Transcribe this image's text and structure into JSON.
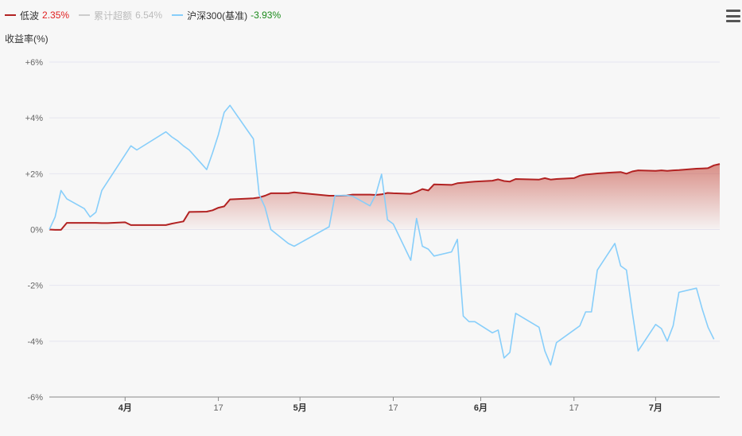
{
  "legend": [
    {
      "name": "低波",
      "value": "2.35%",
      "color": "#b22222",
      "value_color": "#e02020",
      "disabled": false
    },
    {
      "name": "累计超额",
      "value": "6.54%",
      "color": "#cccccc",
      "value_color": "#bbbbbb",
      "disabled": true
    },
    {
      "name": "沪深300(基准)",
      "value": "-3.93%",
      "color": "#87cefa",
      "value_color": "#1a8a1a",
      "disabled": false
    }
  ],
  "menu_icon": "hamburger-menu-icon",
  "chart_data": {
    "type": "line",
    "ylabel": "收益率(%)",
    "ylim": [
      -6,
      6
    ],
    "yticks": [
      6,
      4,
      2,
      0,
      -2,
      -4,
      -6
    ],
    "ytick_labels": [
      "+6%",
      "+4%",
      "+2%",
      "0%",
      "-2%",
      "-4%",
      "-6%"
    ],
    "grid": true,
    "x_range": [
      "2024-03-19",
      "2024-07-12"
    ],
    "xticks": [
      {
        "date": "2024-04-01",
        "label": "4月",
        "bold": true
      },
      {
        "date": "2024-04-17",
        "label": "17",
        "bold": false
      },
      {
        "date": "2024-05-01",
        "label": "5月",
        "bold": true
      },
      {
        "date": "2024-05-17",
        "label": "17",
        "bold": false
      },
      {
        "date": "2024-06-01",
        "label": "6月",
        "bold": true
      },
      {
        "date": "2024-06-17",
        "label": "17",
        "bold": false
      },
      {
        "date": "2024-07-01",
        "label": "7月",
        "bold": true
      }
    ],
    "series": [
      {
        "name": "低波",
        "color": "#b22222",
        "area": true,
        "points": [
          [
            "2024-03-19",
            0
          ],
          [
            "2024-03-20",
            -0.01
          ],
          [
            "2024-03-21",
            -0.01
          ],
          [
            "2024-03-22",
            0.24
          ],
          [
            "2024-03-25",
            0.24
          ],
          [
            "2024-03-26",
            0.24
          ],
          [
            "2024-03-27",
            0.24
          ],
          [
            "2024-03-28",
            0.23
          ],
          [
            "2024-03-29",
            0.23
          ],
          [
            "2024-04-01",
            0.26
          ],
          [
            "2024-04-02",
            0.16
          ],
          [
            "2024-04-03",
            0.16
          ],
          [
            "2024-04-08",
            0.16
          ],
          [
            "2024-04-09",
            0.21
          ],
          [
            "2024-04-10",
            0.25
          ],
          [
            "2024-04-11",
            0.29
          ],
          [
            "2024-04-12",
            0.63
          ],
          [
            "2024-04-15",
            0.64
          ],
          [
            "2024-04-16",
            0.69
          ],
          [
            "2024-04-17",
            0.78
          ],
          [
            "2024-04-18",
            0.83
          ],
          [
            "2024-04-19",
            1.08
          ],
          [
            "2024-04-22",
            1.11
          ],
          [
            "2024-04-23",
            1.12
          ],
          [
            "2024-04-24",
            1.15
          ],
          [
            "2024-04-25",
            1.21
          ],
          [
            "2024-04-26",
            1.3
          ],
          [
            "2024-04-29",
            1.3
          ],
          [
            "2024-04-30",
            1.33
          ],
          [
            "2024-05-06",
            1.21
          ],
          [
            "2024-05-07",
            1.21
          ],
          [
            "2024-05-08",
            1.21
          ],
          [
            "2024-05-09",
            1.22
          ],
          [
            "2024-05-10",
            1.25
          ],
          [
            "2024-05-13",
            1.25
          ],
          [
            "2024-05-14",
            1.24
          ],
          [
            "2024-05-15",
            1.26
          ],
          [
            "2024-05-16",
            1.31
          ],
          [
            "2024-05-17",
            1.3
          ],
          [
            "2024-05-20",
            1.28
          ],
          [
            "2024-05-21",
            1.35
          ],
          [
            "2024-05-22",
            1.45
          ],
          [
            "2024-05-23",
            1.4
          ],
          [
            "2024-05-24",
            1.62
          ],
          [
            "2024-05-27",
            1.6
          ],
          [
            "2024-05-28",
            1.66
          ],
          [
            "2024-05-29",
            1.68
          ],
          [
            "2024-05-30",
            1.7
          ],
          [
            "2024-05-31",
            1.72
          ],
          [
            "2024-06-03",
            1.75
          ],
          [
            "2024-06-04",
            1.8
          ],
          [
            "2024-06-05",
            1.74
          ],
          [
            "2024-06-06",
            1.72
          ],
          [
            "2024-06-07",
            1.81
          ],
          [
            "2024-06-11",
            1.79
          ],
          [
            "2024-06-12",
            1.84
          ],
          [
            "2024-06-13",
            1.79
          ],
          [
            "2024-06-14",
            1.81
          ],
          [
            "2024-06-17",
            1.84
          ],
          [
            "2024-06-18",
            1.93
          ],
          [
            "2024-06-19",
            1.97
          ],
          [
            "2024-06-20",
            1.99
          ],
          [
            "2024-06-21",
            2.01
          ],
          [
            "2024-06-24",
            2.05
          ],
          [
            "2024-06-25",
            2.06
          ],
          [
            "2024-06-26",
            2.0
          ],
          [
            "2024-06-27",
            2.08
          ],
          [
            "2024-06-28",
            2.12
          ],
          [
            "2024-07-01",
            2.1
          ],
          [
            "2024-07-02",
            2.12
          ],
          [
            "2024-07-03",
            2.1
          ],
          [
            "2024-07-04",
            2.12
          ],
          [
            "2024-07-05",
            2.13
          ],
          [
            "2024-07-08",
            2.18
          ],
          [
            "2024-07-09",
            2.19
          ],
          [
            "2024-07-10",
            2.2
          ],
          [
            "2024-07-11",
            2.3
          ],
          [
            "2024-07-12",
            2.35
          ]
        ]
      },
      {
        "name": "沪深300(基准)",
        "color": "#87cefa",
        "area": false,
        "points": [
          [
            "2024-03-19",
            0
          ],
          [
            "2024-03-20",
            0.45
          ],
          [
            "2024-03-21",
            1.4
          ],
          [
            "2024-03-22",
            1.1
          ],
          [
            "2024-03-25",
            0.75
          ],
          [
            "2024-03-26",
            0.45
          ],
          [
            "2024-03-27",
            0.62
          ],
          [
            "2024-03-28",
            1.4
          ],
          [
            "2024-04-02",
            3.0
          ],
          [
            "2024-04-03",
            2.85
          ],
          [
            "2024-04-08",
            3.5
          ],
          [
            "2024-04-09",
            3.32
          ],
          [
            "2024-04-10",
            3.18
          ],
          [
            "2024-04-11",
            3.0
          ],
          [
            "2024-04-12",
            2.85
          ],
          [
            "2024-04-15",
            2.15
          ],
          [
            "2024-04-16",
            2.75
          ],
          [
            "2024-04-17",
            3.4
          ],
          [
            "2024-04-18",
            4.2
          ],
          [
            "2024-04-19",
            4.45
          ],
          [
            "2024-04-22",
            3.55
          ],
          [
            "2024-04-23",
            3.25
          ],
          [
            "2024-04-24",
            1.25
          ],
          [
            "2024-04-25",
            0.8
          ],
          [
            "2024-04-26",
            0
          ],
          [
            "2024-04-29",
            -0.5
          ],
          [
            "2024-04-30",
            -0.6
          ],
          [
            "2024-05-06",
            0.1
          ],
          [
            "2024-05-07",
            1.22
          ],
          [
            "2024-05-08",
            1.22
          ],
          [
            "2024-05-09",
            1.22
          ],
          [
            "2024-05-10",
            1.2
          ],
          [
            "2024-05-13",
            0.85
          ],
          [
            "2024-05-14",
            1.25
          ],
          [
            "2024-05-15",
            1.98
          ],
          [
            "2024-05-16",
            0.35
          ],
          [
            "2024-05-17",
            0.2
          ],
          [
            "2024-05-20",
            -1.1
          ],
          [
            "2024-05-21",
            0.4
          ],
          [
            "2024-05-22",
            -0.6
          ],
          [
            "2024-05-23",
            -0.7
          ],
          [
            "2024-05-24",
            -0.95
          ],
          [
            "2024-05-27",
            -0.8
          ],
          [
            "2024-05-28",
            -0.35
          ],
          [
            "2024-05-29",
            -3.1
          ],
          [
            "2024-05-30",
            -3.3
          ],
          [
            "2024-05-31",
            -3.3
          ],
          [
            "2024-06-03",
            -3.7
          ],
          [
            "2024-06-04",
            -3.6
          ],
          [
            "2024-06-05",
            -4.6
          ],
          [
            "2024-06-06",
            -4.4
          ],
          [
            "2024-06-07",
            -3.0
          ],
          [
            "2024-06-11",
            -3.5
          ],
          [
            "2024-06-12",
            -4.35
          ],
          [
            "2024-06-13",
            -4.85
          ],
          [
            "2024-06-14",
            -4.05
          ],
          [
            "2024-06-17",
            -3.6
          ],
          [
            "2024-06-18",
            -3.45
          ],
          [
            "2024-06-19",
            -2.95
          ],
          [
            "2024-06-20",
            -2.95
          ],
          [
            "2024-06-21",
            -1.45
          ],
          [
            "2024-06-24",
            -0.5
          ],
          [
            "2024-06-25",
            -1.3
          ],
          [
            "2024-06-26",
            -1.45
          ],
          [
            "2024-06-27",
            -2.95
          ],
          [
            "2024-06-28",
            -4.35
          ],
          [
            "2024-07-01",
            -3.4
          ],
          [
            "2024-07-02",
            -3.55
          ],
          [
            "2024-07-03",
            -4.0
          ],
          [
            "2024-07-04",
            -3.45
          ],
          [
            "2024-07-05",
            -2.25
          ],
          [
            "2024-07-08",
            -2.1
          ],
          [
            "2024-07-09",
            -2.85
          ],
          [
            "2024-07-10",
            -3.5
          ],
          [
            "2024-07-11",
            -3.93
          ]
        ]
      }
    ]
  }
}
